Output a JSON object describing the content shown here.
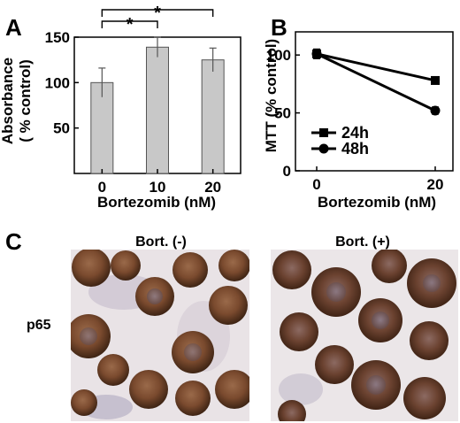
{
  "figure": {
    "panel_labels": [
      "A",
      "B",
      "C"
    ],
    "panel_c": {
      "column_labels": [
        "Bort. (-)",
        "Bort. (+)"
      ],
      "row_label": "p65"
    }
  },
  "chart_data": [
    {
      "panel": "A",
      "type": "bar",
      "categories": [
        "0",
        "10",
        "20"
      ],
      "values": [
        100,
        139,
        125
      ],
      "errors": [
        16,
        11,
        13
      ],
      "xlabel": "Bortezomib (nM)",
      "ylabel": "Absorbance\n( % control)",
      "ylim": [
        0,
        150
      ],
      "yticks": [
        50,
        100,
        150
      ],
      "bar_color": "#c8c8c8",
      "significance": [
        {
          "from": "0",
          "to": "10",
          "label": "*"
        },
        {
          "from": "0",
          "to": "20",
          "label": "*"
        }
      ],
      "grid": false
    },
    {
      "panel": "B",
      "type": "line",
      "x": [
        0,
        20
      ],
      "xticks": [
        "0",
        "20"
      ],
      "series": [
        {
          "name": "24h",
          "marker": "square",
          "values": [
            101,
            78
          ],
          "errors": [
            4,
            2
          ]
        },
        {
          "name": "48h",
          "marker": "circle",
          "values": [
            101,
            52
          ],
          "errors": [
            4,
            3
          ]
        }
      ],
      "xlabel": "Bortezomib (nM)",
      "ylabel": "MTT (% control)",
      "ylim": [
        0,
        120
      ],
      "yticks": [
        0,
        50,
        100
      ],
      "legend_position": "center-left",
      "grid": false
    }
  ]
}
